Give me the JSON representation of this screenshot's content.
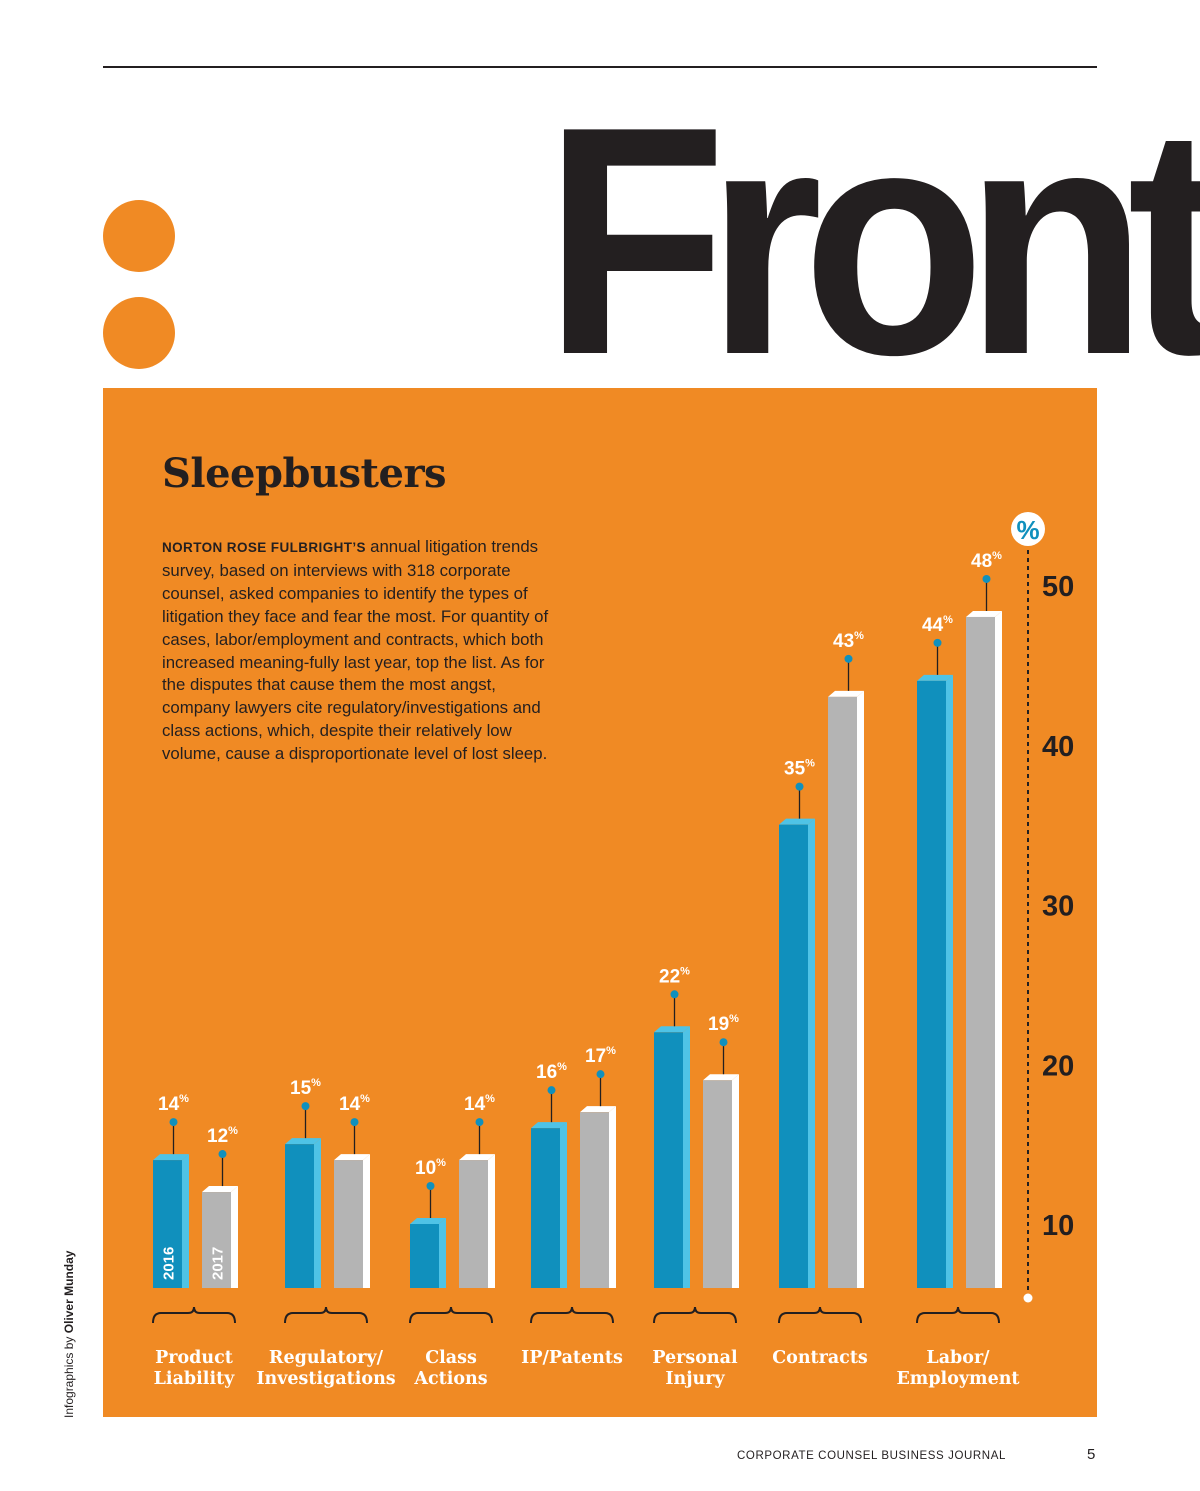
{
  "page": {
    "section_title": "Front",
    "footer_publication": "CORPORATE COUNSEL BUSINESS JOURNAL",
    "footer_page_number": "5",
    "credit_prefix": "Infographics by",
    "credit_name": "Oliver Munday"
  },
  "colors": {
    "panel": "#f08a24",
    "bar_2016": "#1090bd",
    "bar_2016_side": "#4fc3e6",
    "bar_2017": "#b4b4b4",
    "bar_2017_side": "#ffffff",
    "accent": "#1090bd",
    "label_text": "#ffffff",
    "dark_text": "#231f20"
  },
  "intro": {
    "lead": "NORTON ROSE FULBRIGHT’S",
    "body": "annual litigation trends survey, based on interviews with 318 corporate counsel, asked companies to identify the types of litigation they face and fear the most. For quantity of cases, labor/employment and contracts, which both increased meaning-fully last year, top the list. As for the disputes that cause them the most angst, company lawyers cite regulatory/investigations and class actions, which, despite their relatively low volume, cause a disproportionate level of lost sleep."
  },
  "chart_data": {
    "type": "bar",
    "title": "Sleepbusters",
    "ylabel": "%",
    "ylim": [
      5,
      52
    ],
    "yticks": [
      10,
      20,
      30,
      40,
      50
    ],
    "value_suffix": "%",
    "categories": [
      [
        "Product",
        "Liability"
      ],
      [
        "Regulatory/",
        "Investigations"
      ],
      [
        "Class",
        "Actions"
      ],
      [
        "IP/Patents"
      ],
      [
        "Personal",
        "Injury"
      ],
      [
        "Contracts"
      ],
      [
        "Labor/",
        "Employment"
      ]
    ],
    "series": [
      {
        "name": "2016",
        "values": [
          14,
          15,
          10,
          16,
          22,
          35,
          44
        ]
      },
      {
        "name": "2017",
        "values": [
          12,
          14,
          14,
          17,
          19,
          43,
          48
        ]
      }
    ]
  }
}
